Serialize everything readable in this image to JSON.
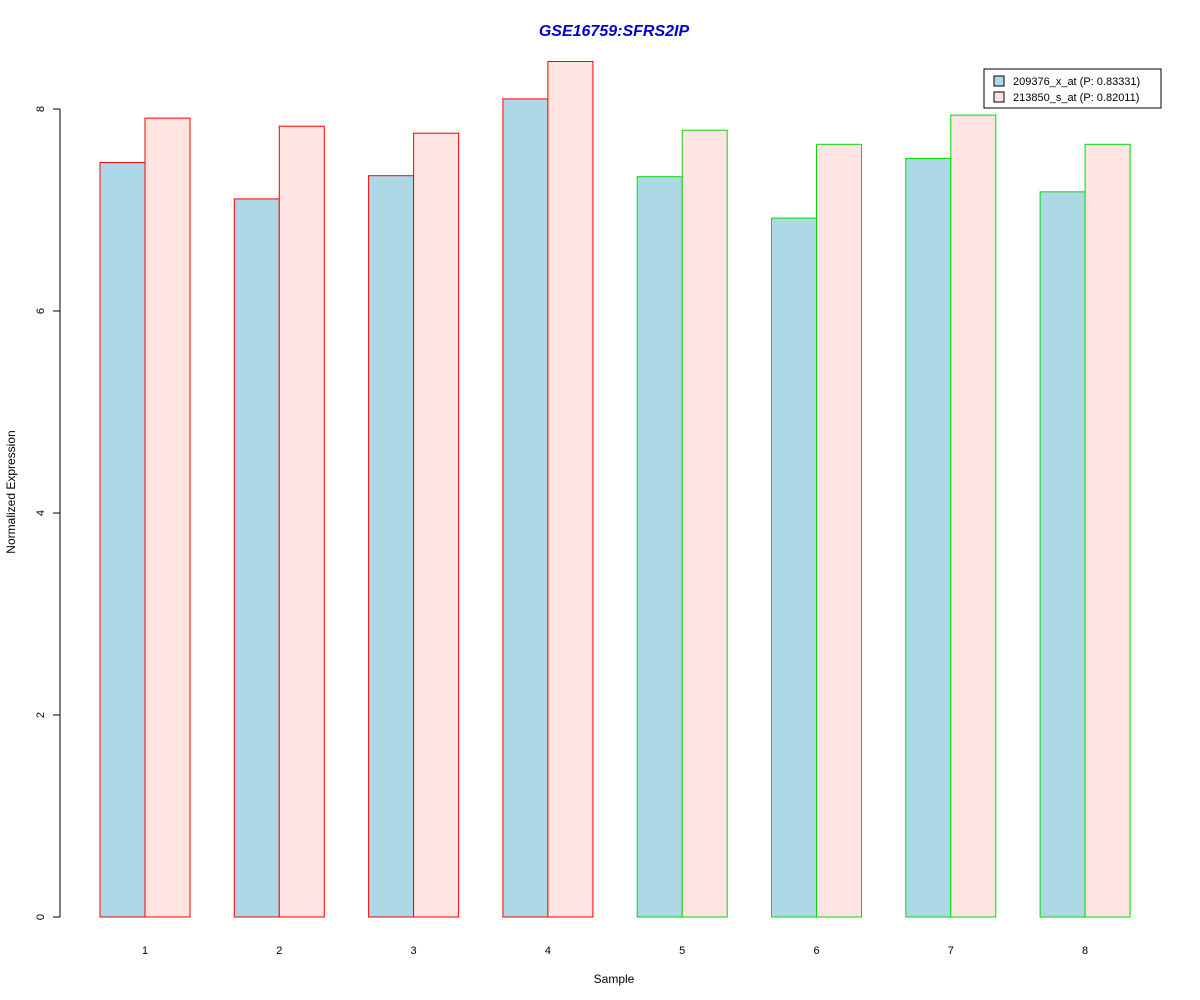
{
  "chart_data": {
    "type": "bar",
    "title": "GSE16759:SFRS2IP",
    "xlabel": "Sample",
    "ylabel": "Normalized Expression",
    "categories": [
      "1",
      "2",
      "3",
      "4",
      "5",
      "6",
      "7",
      "8"
    ],
    "series": [
      {
        "name": "209376_x_at (P: 0.83331)",
        "fill": "#add8e6",
        "values": [
          7.47,
          7.11,
          7.34,
          8.1,
          7.33,
          6.92,
          7.51,
          7.18
        ]
      },
      {
        "name": "213850_s_at (P: 0.82011)",
        "fill": "#ffe4e1",
        "values": [
          7.91,
          7.83,
          7.76,
          8.47,
          7.79,
          7.65,
          7.94,
          7.65
        ]
      }
    ],
    "group_border_colors": [
      "#ff0000",
      "#ff0000",
      "#ff0000",
      "#ff0000",
      "#00dd00",
      "#00dd00",
      "#00dd00",
      "#00dd00"
    ],
    "ylim": [
      0,
      8.5
    ],
    "yticks": [
      0,
      2,
      4,
      6,
      8
    ],
    "grid": false,
    "legend_position": "top-right",
    "colors": {
      "title": "#0000cc",
      "axis": "#000000"
    }
  }
}
